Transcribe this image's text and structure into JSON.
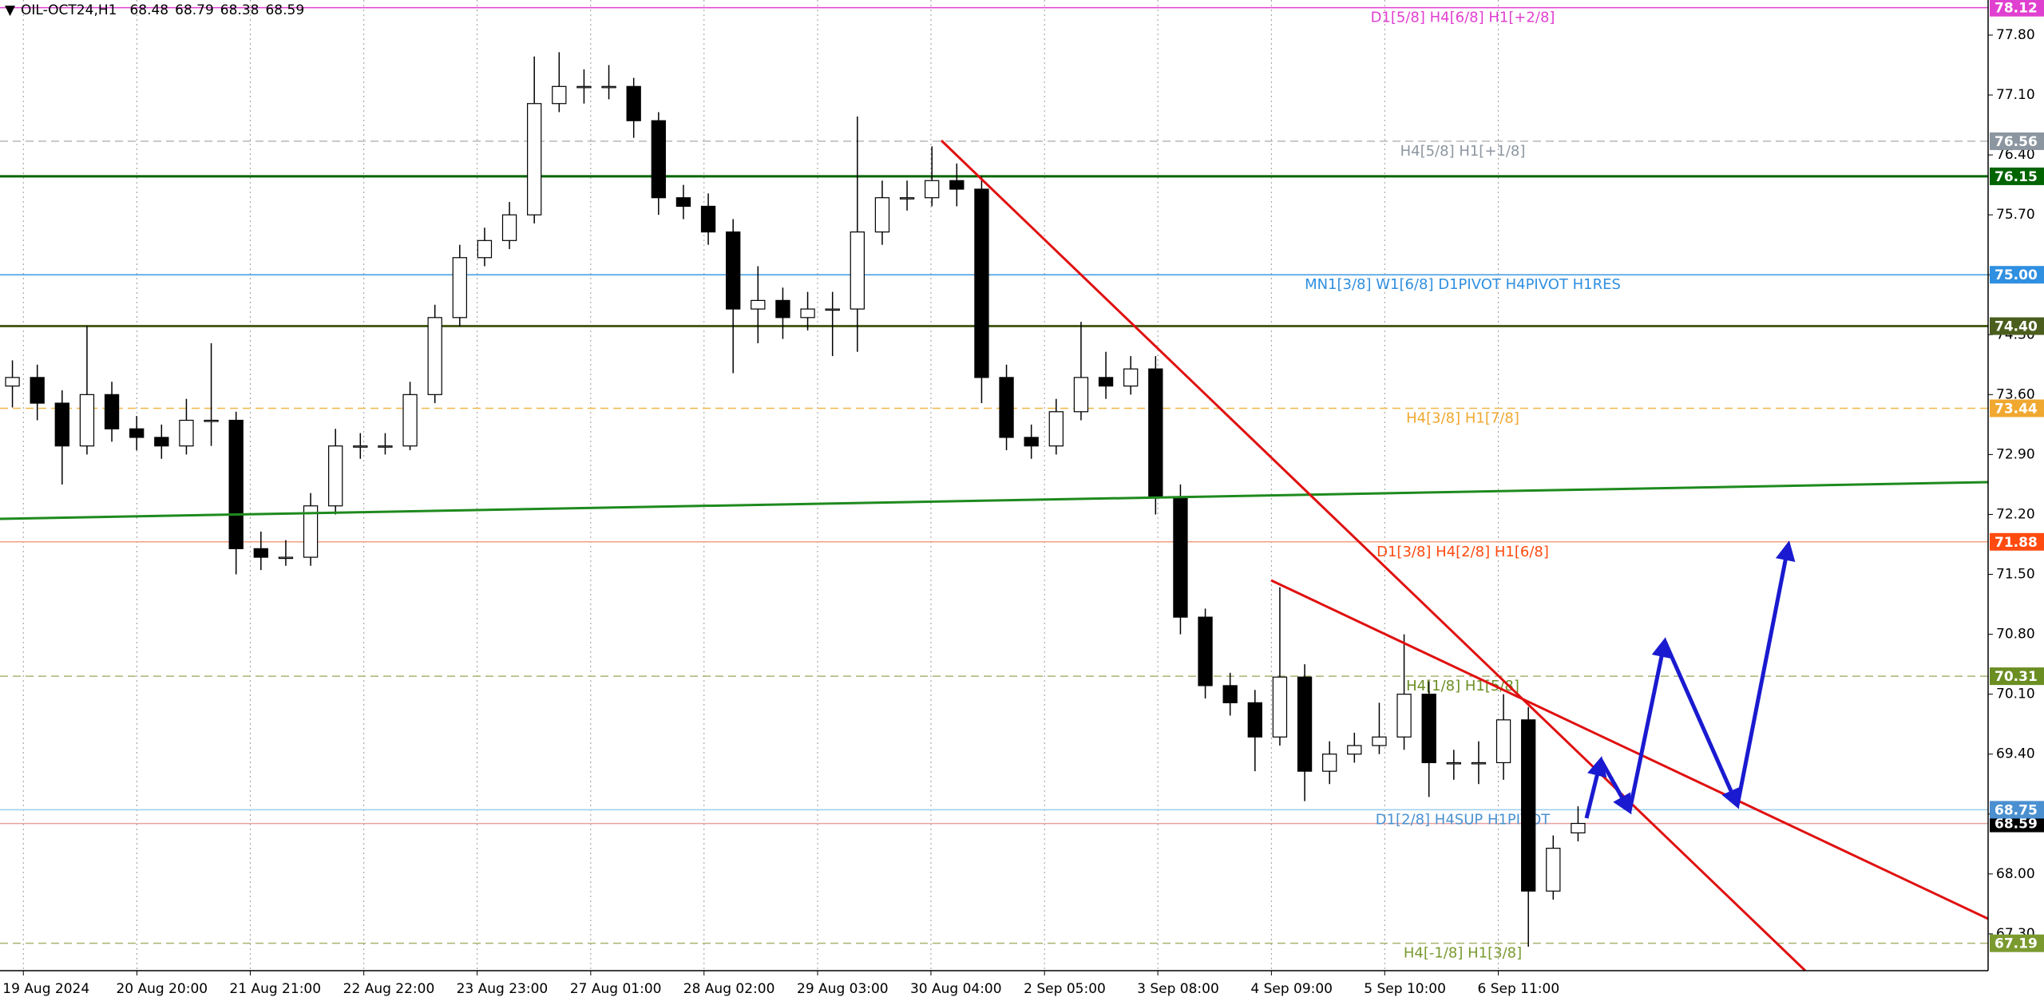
{
  "chart_data": {
    "type": "candlestick",
    "title": "OIL-OCT24,H1",
    "open": [
      73.7,
      73.8,
      73.5,
      73.0,
      73.6,
      73.2,
      73.1,
      73.0,
      73.3,
      73.3,
      71.8,
      71.7,
      71.7,
      72.3,
      73.0,
      73.0,
      73.0,
      73.6,
      74.5,
      75.2,
      75.4,
      75.7,
      77.0,
      77.2,
      77.2,
      77.2,
      76.8,
      75.9,
      75.8,
      75.5,
      74.6,
      74.7,
      74.5,
      74.6,
      74.6,
      75.5,
      75.9,
      75.9,
      76.1,
      76.0,
      73.8,
      73.1,
      73.0,
      73.4,
      73.8,
      73.7,
      73.9,
      72.4,
      71.0,
      70.2,
      70.0,
      69.6,
      70.3,
      69.2,
      69.4,
      69.5,
      69.6,
      70.1,
      69.3,
      69.3,
      69.3,
      69.8,
      67.8,
      68.48
    ],
    "high": [
      74.0,
      73.95,
      73.65,
      74.4,
      73.75,
      73.35,
      73.25,
      73.55,
      74.2,
      73.4,
      72.0,
      71.9,
      72.45,
      73.2,
      73.15,
      73.15,
      73.75,
      74.65,
      75.35,
      75.55,
      75.85,
      77.55,
      77.6,
      77.4,
      77.45,
      77.3,
      76.9,
      76.05,
      75.95,
      75.65,
      75.1,
      74.85,
      74.8,
      74.8,
      76.85,
      76.1,
      76.1,
      76.5,
      76.3,
      76.15,
      73.95,
      73.25,
      73.55,
      74.45,
      74.1,
      74.05,
      74.05,
      72.55,
      71.1,
      70.35,
      70.15,
      71.35,
      70.45,
      69.55,
      69.65,
      70.0,
      70.8,
      70.25,
      69.45,
      69.55,
      70.1,
      69.95,
      68.45,
      68.79
    ],
    "low": [
      73.45,
      73.3,
      72.55,
      72.9,
      73.05,
      72.95,
      72.85,
      72.9,
      73.0,
      71.5,
      71.55,
      71.6,
      71.6,
      72.2,
      72.85,
      72.9,
      72.95,
      73.5,
      74.4,
      75.1,
      75.3,
      75.6,
      76.9,
      77.0,
      77.05,
      76.6,
      75.7,
      75.65,
      75.35,
      73.85,
      74.2,
      74.25,
      74.35,
      74.05,
      74.1,
      75.35,
      75.75,
      75.8,
      75.8,
      73.5,
      72.95,
      72.85,
      72.9,
      73.3,
      73.55,
      73.6,
      72.2,
      70.8,
      70.05,
      69.85,
      69.2,
      69.5,
      68.85,
      69.05,
      69.3,
      69.4,
      69.45,
      68.9,
      69.1,
      69.05,
      69.1,
      67.15,
      67.7,
      68.38
    ],
    "close": [
      73.8,
      73.5,
      73.0,
      73.6,
      73.2,
      73.1,
      73.0,
      73.3,
      73.3,
      71.8,
      71.7,
      71.7,
      72.3,
      73.0,
      73.0,
      73.0,
      73.6,
      74.5,
      75.2,
      75.4,
      75.7,
      77.0,
      77.2,
      77.2,
      77.2,
      76.8,
      75.9,
      75.8,
      75.5,
      74.6,
      74.7,
      74.5,
      74.6,
      74.6,
      75.5,
      75.9,
      75.9,
      76.1,
      76.0,
      73.8,
      73.1,
      73.0,
      73.4,
      73.8,
      73.7,
      73.9,
      72.4,
      71.0,
      70.2,
      70.0,
      69.6,
      70.3,
      69.2,
      69.4,
      69.5,
      69.6,
      70.1,
      69.3,
      69.3,
      69.3,
      69.8,
      67.8,
      68.3,
      68.59
    ],
    "xlim": [
      0,
      80
    ],
    "xticks": [
      {
        "value": 0.94,
        "label": "19 Aug 2024"
      },
      {
        "value": 5.51,
        "label": "20 Aug 20:00"
      },
      {
        "value": 10.07,
        "label": "21 Aug 21:00"
      },
      {
        "value": 14.64,
        "label": "22 Aug 22:00"
      },
      {
        "value": 19.2,
        "label": "23 Aug 23:00"
      },
      {
        "value": 23.77,
        "label": "27 Aug 01:00"
      },
      {
        "value": 28.33,
        "label": "28 Aug 02:00"
      },
      {
        "value": 32.9,
        "label": "29 Aug 03:00"
      },
      {
        "value": 37.46,
        "label": "30 Aug 04:00"
      },
      {
        "value": 42.03,
        "label": "2 Sep 05:00"
      },
      {
        "value": 46.59,
        "label": "3 Sep 08:00"
      },
      {
        "value": 51.16,
        "label": "4 Sep 09:00"
      },
      {
        "value": 55.72,
        "label": "5 Sep 10:00"
      },
      {
        "value": 60.29,
        "label": "6 Sep 11:00"
      }
    ],
    "ylim": [
      66.87,
      78.21
    ],
    "yticks": [
      {
        "value": 67.3,
        "label": "67.30"
      },
      {
        "value": 68,
        "label": "68.00"
      },
      {
        "value": 68.7,
        "label": "68.70"
      },
      {
        "value": 69.4,
        "label": "69.40"
      },
      {
        "value": 70.1,
        "label": "70.10"
      },
      {
        "value": 70.8,
        "label": "70.80"
      },
      {
        "value": 71.5,
        "label": "71.50"
      },
      {
        "value": 72.2,
        "label": "72.20"
      },
      {
        "value": 72.9,
        "label": "72.90"
      },
      {
        "value": 73.6,
        "label": "73.60"
      },
      {
        "value": 74.3,
        "label": "74.30"
      },
      {
        "value": 75,
        "label": "75.00"
      },
      {
        "value": 75.7,
        "label": "75.70"
      },
      {
        "value": 76.4,
        "label": "76.40"
      },
      {
        "value": 77.1,
        "label": "77.10"
      },
      {
        "value": 77.8,
        "label": "77.80"
      }
    ],
    "grid": true,
    "levels": [
      {
        "name": "D1[5/8] H4[6/8] H1[+2/8]",
        "value": 78.12,
        "value_label": "78.12",
        "color": "#e040d0",
        "tag_color": "#e040d0",
        "style": "solid"
      },
      {
        "name": "H4[5/8] H1[+1/8]",
        "value": 76.56,
        "value_label": "76.56",
        "color": "#b8b8b8",
        "tag_color": "#8c96a0",
        "style": "dashed"
      },
      {
        "value": 76.15,
        "value_label": "76.15",
        "color": "#006400",
        "tag_color": "#006400",
        "style": "thick"
      },
      {
        "name": "MN1[3/8] W1[6/8] D1PIVOT H4PIVOT H1RES",
        "value": 75,
        "value_label": "75.00",
        "color": "#3c9ae0",
        "tag_color": "#2f8fe0",
        "style": "solid"
      },
      {
        "value": 74.4,
        "value_label": "74.40",
        "color": "#4b5e1e",
        "tag_color": "#4b5e1e",
        "style": "thick"
      },
      {
        "name": "H4[3/8] H1[7/8]",
        "value": 73.44,
        "value_label": "73.44",
        "color": "#f0b848",
        "tag_color": "#f0a830",
        "style": "dashed"
      },
      {
        "name": "D1[3/8] H4[2/8] H1[6/8]",
        "value": 71.88,
        "value_label": "71.88",
        "color": "#f0a080",
        "tag_color": "#ff4a10",
        "style": "solid"
      },
      {
        "name": "H4[1/8] H1[5/8]",
        "value": 70.31,
        "value_label": "70.31",
        "color": "#a8b470",
        "tag_color": "#6b8e23",
        "style": "dashed"
      },
      {
        "value": 68.59,
        "value_label": "68.59",
        "color": "#e8a0a0",
        "tag_color": "#000000",
        "style": "solid"
      },
      {
        "name": "D1[2/8] H4SUP H1PIVOT",
        "value": 68.75,
        "value_label": "68.75",
        "color": "#9ccfee",
        "tag_color": "#4a90d0",
        "style": "solid"
      },
      {
        "name": "H4[-1/8] H1[3/8]",
        "value": 67.19,
        "value_label": "67.19",
        "color": "#a8b470",
        "tag_color": "#7a9a30",
        "style": "dashed"
      }
    ]
  }
}
